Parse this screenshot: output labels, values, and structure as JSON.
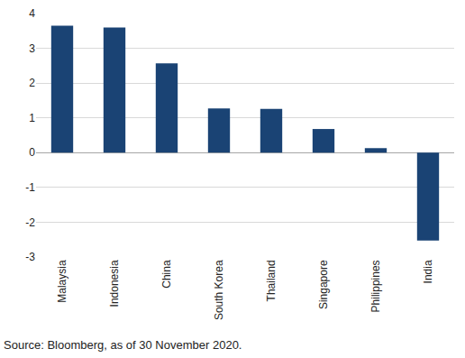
{
  "chart_data": {
    "type": "bar",
    "categories": [
      "Malaysia",
      "Indonesia",
      "China",
      "South Korea",
      "Thailand",
      "Singapore",
      "Philippines",
      "India"
    ],
    "values": [
      3.65,
      3.6,
      2.57,
      1.27,
      1.26,
      0.68,
      0.13,
      -2.53
    ],
    "color": "#1a4374",
    "ylim": [
      -3,
      4
    ],
    "yticks": [
      -3,
      -2,
      -1,
      0,
      1,
      2,
      3,
      4
    ],
    "grid": true,
    "source": "Source: Bloomberg, as of 30 November 2020."
  }
}
